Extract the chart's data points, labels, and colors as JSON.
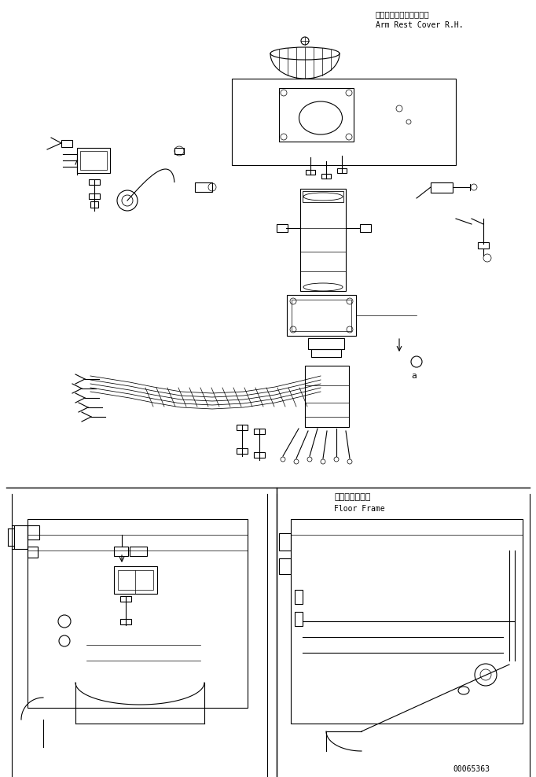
{
  "bg_color": "#ffffff",
  "line_color": "#000000",
  "text_color": "#000000",
  "figsize": [
    6.82,
    9.88
  ],
  "dpi": 100,
  "label_top_jp": "アームレストカバー　右",
  "label_top_en": "Arm Rest Cover R.H.",
  "label_bottom_jp": "フロアフレーム",
  "label_bottom_en": "Floor Frame",
  "serial_number": "00065363"
}
